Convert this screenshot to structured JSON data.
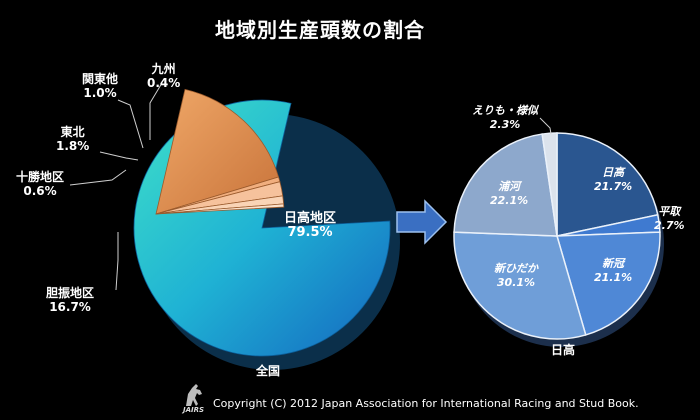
{
  "title": "地域別生産頭数の割合",
  "chart_data": [
    {
      "type": "pie",
      "caption": "全国",
      "labels": [
        "日高地区",
        "胆振地区",
        "十勝地区",
        "東北",
        "関東他",
        "九州"
      ],
      "values": [
        79.5,
        16.7,
        0.6,
        1.8,
        1.0,
        0.4
      ],
      "value_labels": [
        "79.5%",
        "16.7%",
        "0.6%",
        "1.8%",
        "1.0%",
        "0.4%"
      ],
      "exploded": [
        "胆振地区",
        "十勝地区",
        "東北",
        "関東他",
        "九州"
      ],
      "colors": [
        "#1ea6d6",
        "#e49452",
        "#f0ae7e",
        "#f6c29c",
        "#f9d4b6",
        "#fbe2cc"
      ]
    },
    {
      "type": "pie",
      "caption": "日高",
      "labels": [
        "日高",
        "平取",
        "新冠",
        "新ひだか",
        "浦河",
        "えりも・様似"
      ],
      "values": [
        21.7,
        2.7,
        21.1,
        30.1,
        22.1,
        2.3
      ],
      "value_labels": [
        "21.7%",
        "2.7%",
        "21.1%",
        "30.1%",
        "22.1%",
        "2.3%"
      ],
      "colors": [
        "#2a5690",
        "#3f7ad0",
        "#4f88d6",
        "#6f9ed8",
        "#8da8cc",
        "#dce3ec"
      ]
    }
  ],
  "footer": "Copyright (C) 2012 Japan Association for International Racing and Stud Book.",
  "logo_text": "JAIRS"
}
